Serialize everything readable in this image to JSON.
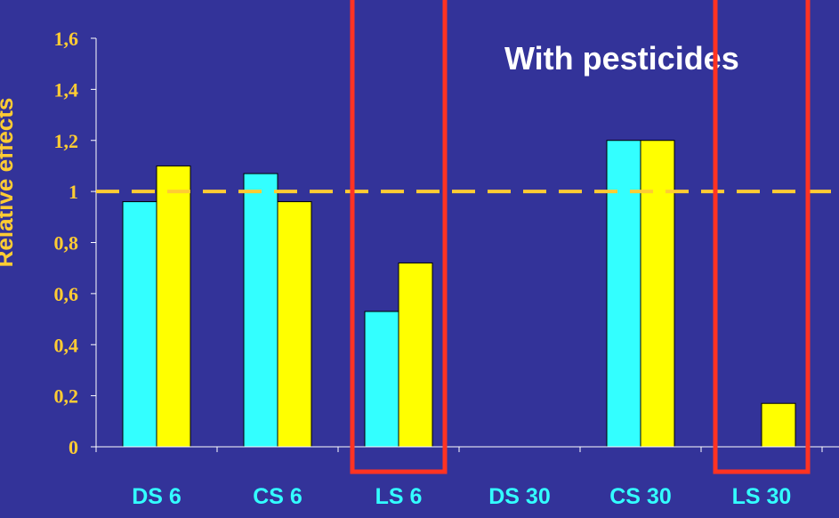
{
  "chart_data": {
    "type": "bar",
    "title": "With pesticides",
    "ylabel": "Relative effects",
    "xlabel": "",
    "categories": [
      "DS 6",
      "CS 6",
      "LS 6",
      "DS 30",
      "CS 30",
      "LS 30"
    ],
    "series": [
      {
        "color": "#33FFFF",
        "values": [
          0.96,
          1.07,
          0.53,
          null,
          1.2,
          null
        ]
      },
      {
        "color": "#FFFF00",
        "values": [
          1.1,
          0.96,
          0.72,
          null,
          1.2,
          0.17
        ]
      }
    ],
    "ylim": [
      0,
      1.6
    ],
    "yticks": [
      "0",
      "0,2",
      "0,4",
      "0,6",
      "0,8",
      "1",
      "1,2",
      "1,4",
      "1,6"
    ],
    "reference_line": {
      "value": 1,
      "color": "#FFCC33",
      "style": "dashed"
    },
    "highlight_boxes": [
      {
        "category": "LS 6",
        "color": "#FF3322"
      },
      {
        "category": "LS 30",
        "color": "#FF3322"
      }
    ],
    "colors": {
      "background": "#333399",
      "axis": "#FFFFFF",
      "tick_labels": "#FFCC33",
      "category_labels": "#33FFFF",
      "title": "#FFFFFF"
    },
    "grid": false
  }
}
